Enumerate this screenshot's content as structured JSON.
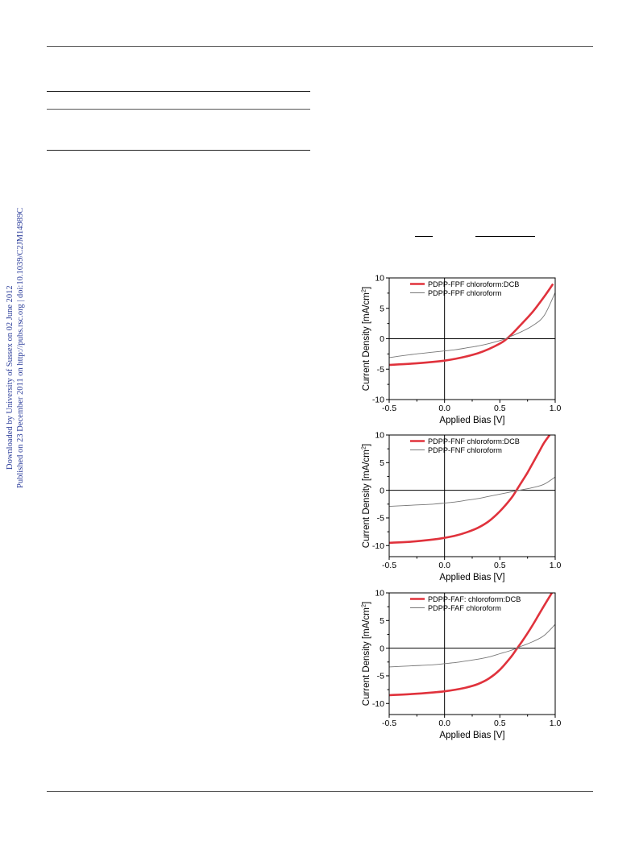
{
  "side_note": {
    "line1": "Downloaded by University of Sussex on 02 June 2012",
    "line2": "Published on 23 December 2011 on http://pubs.rsc.org | doi:10.1039/C2JM14989C"
  },
  "chart_data": [
    {
      "type": "line",
      "xlabel": "Applied Bias [V]",
      "ylabel": "Current Density [mA/cm²]",
      "ylabel_main": "Current Density [mA/cm",
      "ylabel_sup": "2",
      "ylabel_end": "]",
      "xlim": [
        -0.5,
        1.0
      ],
      "ylim": [
        -10,
        10
      ],
      "xticks": [
        -0.5,
        0.0,
        0.5,
        1.0
      ],
      "xtick_labels": [
        "-0.5",
        "0.0",
        "0.5",
        "1.0"
      ],
      "yticks": [
        -10,
        -5,
        0,
        5,
        10
      ],
      "ytick_labels": [
        "-10",
        "-5",
        "0",
        "5",
        "10"
      ],
      "legend": "top-left",
      "colors": {
        "red": "#e0323c",
        "gray": "#777777"
      },
      "series": [
        {
          "name": "PDPP-FPF chloroform:DCB",
          "x": [
            -0.5,
            -0.3,
            -0.1,
            0.0,
            0.1,
            0.2,
            0.3,
            0.4,
            0.5,
            0.55,
            0.6,
            0.7,
            0.8,
            0.9,
            0.98
          ],
          "y": [
            -4.3,
            -4.1,
            -3.8,
            -3.6,
            -3.3,
            -2.9,
            -2.4,
            -1.7,
            -0.8,
            -0.2,
            0.6,
            2.5,
            4.5,
            6.9,
            9.0
          ]
        },
        {
          "name": "PDPP-FPF chloroform",
          "x": [
            -0.5,
            -0.3,
            -0.1,
            0.0,
            0.1,
            0.2,
            0.3,
            0.4,
            0.5,
            0.55,
            0.6,
            0.7,
            0.8,
            0.9,
            1.0
          ],
          "y": [
            -3.1,
            -2.6,
            -2.2,
            -2.0,
            -1.8,
            -1.5,
            -1.2,
            -0.8,
            -0.3,
            0.0,
            0.4,
            1.2,
            2.2,
            3.8,
            7.6
          ]
        }
      ]
    },
    {
      "type": "line",
      "xlabel": "Applied Bias [V]",
      "ylabel": "Current Density [mA/cm²]",
      "ylabel_main": "Current Density [mA/cm",
      "ylabel_sup": "2",
      "ylabel_end": "]",
      "xlim": [
        -0.5,
        1.0
      ],
      "ylim": [
        -12,
        10
      ],
      "xticks": [
        -0.5,
        0.0,
        0.5,
        1.0
      ],
      "xtick_labels": [
        "-0.5",
        "0.0",
        "0.5",
        "1.0"
      ],
      "yticks": [
        -10,
        -5,
        0,
        5,
        10
      ],
      "ytick_labels": [
        "-10",
        "-5",
        "0",
        "5",
        "10"
      ],
      "legend": "top-left",
      "colors": {
        "red": "#e0323c",
        "gray": "#777777"
      },
      "series": [
        {
          "name": "PDPP-FNF chloroform:DCB",
          "x": [
            -0.5,
            -0.3,
            -0.1,
            0.0,
            0.1,
            0.2,
            0.3,
            0.4,
            0.5,
            0.6,
            0.65,
            0.7,
            0.75,
            0.8,
            0.85,
            0.9,
            0.95
          ],
          "y": [
            -9.5,
            -9.3,
            -8.9,
            -8.6,
            -8.2,
            -7.6,
            -6.8,
            -5.6,
            -3.8,
            -1.5,
            0.0,
            1.6,
            3.2,
            5.0,
            6.8,
            8.6,
            10.0
          ]
        },
        {
          "name": "PDPP-FNF chloroform",
          "x": [
            -0.5,
            -0.3,
            -0.1,
            0.0,
            0.1,
            0.2,
            0.3,
            0.4,
            0.5,
            0.6,
            0.7,
            0.8,
            0.9,
            1.0
          ],
          "y": [
            -2.9,
            -2.7,
            -2.5,
            -2.3,
            -2.1,
            -1.8,
            -1.5,
            -1.1,
            -0.7,
            -0.3,
            0.1,
            0.5,
            1.1,
            2.4
          ]
        }
      ]
    },
    {
      "type": "line",
      "xlabel": "Applied Bias [V]",
      "ylabel": "Current Density [mA/cm²]",
      "ylabel_main": "Current Density [mA/cm",
      "ylabel_sup": "2",
      "ylabel_end": "]",
      "xlim": [
        -0.5,
        1.0
      ],
      "ylim": [
        -12,
        10
      ],
      "xticks": [
        -0.5,
        0.0,
        0.5,
        1.0
      ],
      "xtick_labels": [
        "-0.5",
        "0.0",
        "0.5",
        "1.0"
      ],
      "yticks": [
        -10,
        -5,
        0,
        5,
        10
      ],
      "ytick_labels": [
        "-10",
        "-5",
        "0",
        "5",
        "10"
      ],
      "legend": "top-left",
      "colors": {
        "red": "#e0323c",
        "gray": "#777777"
      },
      "series": [
        {
          "name": "PDPP-FAF: chloroform:DCB",
          "x": [
            -0.5,
            -0.3,
            -0.1,
            0.0,
            0.1,
            0.2,
            0.3,
            0.4,
            0.5,
            0.6,
            0.65,
            0.7,
            0.75,
            0.8,
            0.85,
            0.9,
            0.97
          ],
          "y": [
            -8.5,
            -8.3,
            -8.0,
            -7.8,
            -7.5,
            -7.1,
            -6.5,
            -5.5,
            -3.9,
            -1.6,
            -0.2,
            1.2,
            2.7,
            4.3,
            6.0,
            7.7,
            10.0
          ]
        },
        {
          "name": "PDPP-FAF chloroform",
          "x": [
            -0.5,
            -0.3,
            -0.1,
            0.0,
            0.1,
            0.2,
            0.3,
            0.4,
            0.5,
            0.6,
            0.7,
            0.8,
            0.9,
            1.0
          ],
          "y": [
            -3.4,
            -3.2,
            -3.0,
            -2.8,
            -2.6,
            -2.3,
            -2.0,
            -1.6,
            -1.0,
            -0.4,
            0.4,
            1.2,
            2.3,
            4.3
          ]
        }
      ]
    }
  ]
}
